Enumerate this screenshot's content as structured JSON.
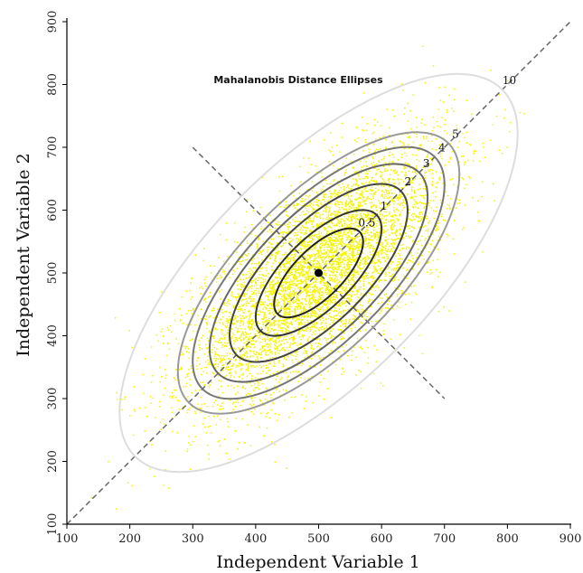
{
  "chart_data": {
    "type": "scatter",
    "title": "Mahalanobis Distance Ellipses",
    "xlabel": "Independent Variable 1",
    "ylabel": "Independent Variable 2",
    "xlim": [
      100,
      900
    ],
    "ylim": [
      100,
      900
    ],
    "x_ticks": [
      100,
      200,
      300,
      400,
      500,
      600,
      700,
      800,
      900
    ],
    "y_ticks": [
      100,
      200,
      300,
      400,
      500,
      600,
      700,
      800,
      900
    ],
    "grid": false,
    "points_color": "#f5f500",
    "center": {
      "x": 500,
      "y": 500,
      "color": "#000000"
    },
    "major_axis_line": {
      "from": {
        "x": 100,
        "y": 100
      },
      "to": {
        "x": 900,
        "y": 900
      },
      "style": "dashed",
      "color": "#666666"
    },
    "minor_axis_line": {
      "from": {
        "x": 300,
        "y": 700
      },
      "to": {
        "x": 700,
        "y": 300
      },
      "style": "dashed",
      "color": "#666666"
    },
    "distribution": {
      "mean": [
        500,
        500
      ],
      "cov": [
        [
          10000,
          7000
        ],
        [
          7000,
          10000
        ]
      ]
    },
    "ellipses": [
      {
        "label": "0.5",
        "level": 0.5,
        "color": "#222222"
      },
      {
        "label": "1",
        "level": 1,
        "color": "#333333"
      },
      {
        "label": "2",
        "level": 2,
        "color": "#444444"
      },
      {
        "label": "3",
        "level": 3,
        "color": "#666666"
      },
      {
        "label": "4",
        "level": 4,
        "color": "#777777"
      },
      {
        "label": "5",
        "level": 5,
        "color": "#999999"
      },
      {
        "label": "10",
        "level": 10,
        "color": "#dddddd"
      }
    ]
  }
}
